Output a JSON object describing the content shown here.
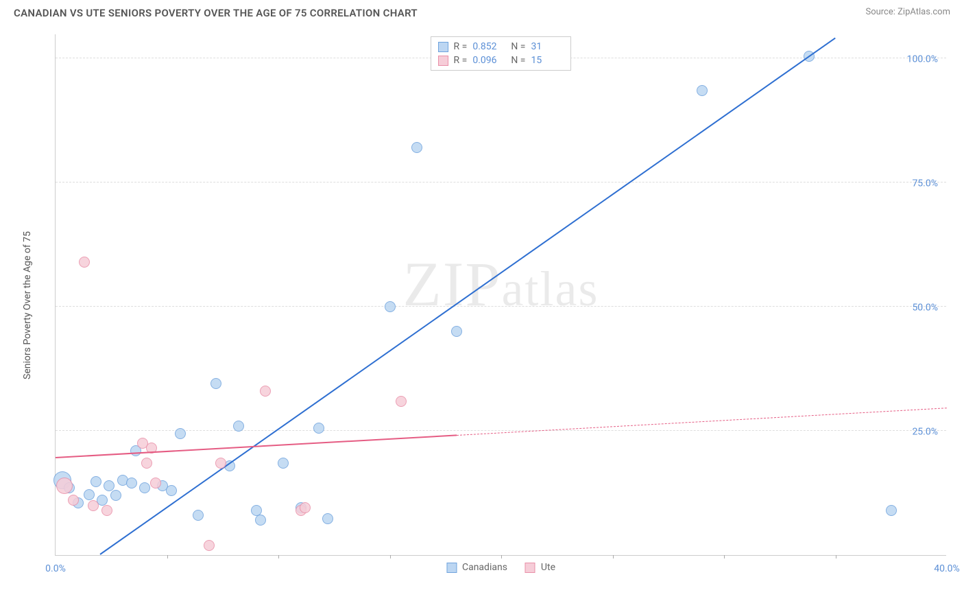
{
  "header": {
    "title": "CANADIAN VS UTE SENIORS POVERTY OVER THE AGE OF 75 CORRELATION CHART",
    "source_prefix": "Source: ",
    "source_link": "ZipAtlas.com"
  },
  "chart": {
    "type": "scatter",
    "ylabel": "Seniors Poverty Over the Age of 75",
    "watermark": "ZIPatlas",
    "xlim": [
      0,
      40
    ],
    "ylim": [
      0,
      105
    ],
    "xtick_labels": [
      "0.0%",
      "40.0%"
    ],
    "xtick_positions": [
      0,
      40
    ],
    "xtick_minor": [
      5,
      10,
      15,
      20,
      25,
      30,
      35
    ],
    "ytick_labels": [
      "25.0%",
      "50.0%",
      "75.0%",
      "100.0%"
    ],
    "ytick_positions": [
      25,
      50,
      75,
      100
    ],
    "grid_color": "#dddddd",
    "axis_color": "#cccccc",
    "background_color": "#ffffff",
    "label_color": "#5b8fd6",
    "axis_label_color": "#555555",
    "label_fontsize": 14,
    "title_fontsize": 15,
    "series": [
      {
        "name": "Canadians",
        "fill": "#bcd6f2",
        "stroke": "#6fa3dd",
        "line_color": "#2e6fd1",
        "marker_radius": 8,
        "stats": {
          "R": "0.852",
          "N": "31"
        },
        "points": [
          {
            "x": 0.3,
            "y": 15.0,
            "r": 13
          },
          {
            "x": 0.6,
            "y": 13.5
          },
          {
            "x": 1.0,
            "y": 10.5
          },
          {
            "x": 1.5,
            "y": 12.2
          },
          {
            "x": 1.8,
            "y": 14.8
          },
          {
            "x": 2.1,
            "y": 11.0
          },
          {
            "x": 2.4,
            "y": 14.0
          },
          {
            "x": 2.7,
            "y": 12.0
          },
          {
            "x": 3.0,
            "y": 15.1
          },
          {
            "x": 3.4,
            "y": 14.5
          },
          {
            "x": 3.6,
            "y": 21.0
          },
          {
            "x": 4.0,
            "y": 13.5
          },
          {
            "x": 4.8,
            "y": 14.0
          },
          {
            "x": 5.2,
            "y": 13.0
          },
          {
            "x": 5.6,
            "y": 24.5
          },
          {
            "x": 6.4,
            "y": 8.0
          },
          {
            "x": 7.2,
            "y": 34.5
          },
          {
            "x": 7.8,
            "y": 18.0
          },
          {
            "x": 8.2,
            "y": 26.0
          },
          {
            "x": 9.0,
            "y": 9.0
          },
          {
            "x": 9.2,
            "y": 7.0
          },
          {
            "x": 10.2,
            "y": 18.5
          },
          {
            "x": 11.0,
            "y": 9.5
          },
          {
            "x": 11.8,
            "y": 25.5
          },
          {
            "x": 12.2,
            "y": 7.3
          },
          {
            "x": 15.0,
            "y": 50.0
          },
          {
            "x": 16.2,
            "y": 82.0
          },
          {
            "x": 18.0,
            "y": 45.0
          },
          {
            "x": 29.0,
            "y": 93.5
          },
          {
            "x": 33.8,
            "y": 100.5
          },
          {
            "x": 37.5,
            "y": 9.0
          }
        ],
        "trend": {
          "x1": 2.0,
          "y1": 0.0,
          "x2": 35.0,
          "y2": 104.0
        }
      },
      {
        "name": "Ute",
        "fill": "#f6cdd8",
        "stroke": "#e98fa8",
        "line_color": "#e55c83",
        "marker_radius": 8,
        "stats": {
          "R": "0.096",
          "N": "15"
        },
        "points": [
          {
            "x": 0.4,
            "y": 14.0,
            "r": 12
          },
          {
            "x": 0.8,
            "y": 11.0
          },
          {
            "x": 1.7,
            "y": 10.0
          },
          {
            "x": 1.3,
            "y": 59.0
          },
          {
            "x": 2.3,
            "y": 9.0
          },
          {
            "x": 3.9,
            "y": 22.5
          },
          {
            "x": 4.1,
            "y": 18.5
          },
          {
            "x": 4.3,
            "y": 21.5
          },
          {
            "x": 4.5,
            "y": 14.5
          },
          {
            "x": 6.9,
            "y": 2.0
          },
          {
            "x": 7.4,
            "y": 18.5
          },
          {
            "x": 9.4,
            "y": 33.0
          },
          {
            "x": 11.0,
            "y": 9.0
          },
          {
            "x": 11.2,
            "y": 9.5
          },
          {
            "x": 15.5,
            "y": 31.0
          }
        ],
        "trend_solid": {
          "x1": 0.0,
          "y1": 19.5,
          "x2": 18.0,
          "y2": 24.0
        },
        "trend_dash": {
          "x1": 18.0,
          "y1": 24.0,
          "x2": 40.0,
          "y2": 29.5
        }
      }
    ],
    "legend_top_labels": {
      "R": "R =",
      "N": "N ="
    },
    "legend_bottom": [
      "Canadians",
      "Ute"
    ]
  }
}
